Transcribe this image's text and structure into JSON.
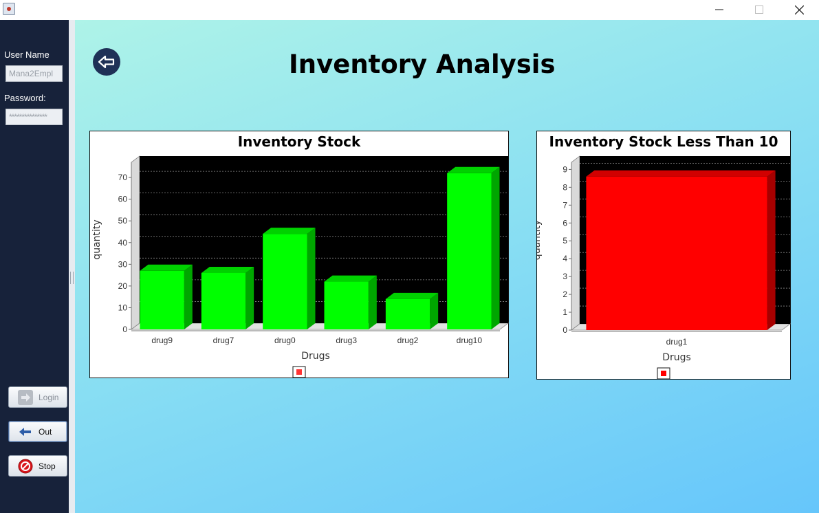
{
  "window": {
    "minimize_icon": "minimize-icon",
    "maximize_icon": "maximize-icon",
    "close_icon": "close-icon"
  },
  "sidebar": {
    "username_label": "User Name",
    "username_value": "Mana2Empl",
    "password_label": "Password:",
    "password_value": "***************",
    "login_label": "Login",
    "out_label": "Out",
    "stop_label": "Stop"
  },
  "header": {
    "title": "Inventory Analysis",
    "back_icon": "back-arrow-icon"
  },
  "colors": {
    "sidebar_bg": "#17223a",
    "bar_green": "#00ff00",
    "bar_red": "#ff0000",
    "plot_bg": "#000000"
  },
  "chart_data": [
    {
      "type": "bar",
      "title": "Inventory Stock",
      "xlabel": "Drugs",
      "ylabel": "quantity",
      "categories": [
        "drug9",
        "drug7",
        "drug0",
        "drug3",
        "drug2",
        "drug10"
      ],
      "values": [
        27,
        26,
        44,
        22,
        14,
        72
      ],
      "ylim": [
        0,
        77
      ],
      "yticks": [
        0,
        10,
        20,
        30,
        40,
        50,
        60,
        70
      ],
      "grid": true,
      "legend": "bottom-center",
      "color": "#00ff00"
    },
    {
      "type": "bar",
      "title": "Inventory Stock Less Than 10",
      "xlabel": "Drugs",
      "ylabel": "quantity",
      "categories": [
        "drug1"
      ],
      "values": [
        8.6
      ],
      "ylim": [
        0,
        9.4
      ],
      "yticks": [
        0,
        1,
        2,
        3,
        4,
        5,
        6,
        7,
        8,
        9
      ],
      "grid": true,
      "legend": "bottom-center",
      "color": "#ff0000"
    }
  ]
}
